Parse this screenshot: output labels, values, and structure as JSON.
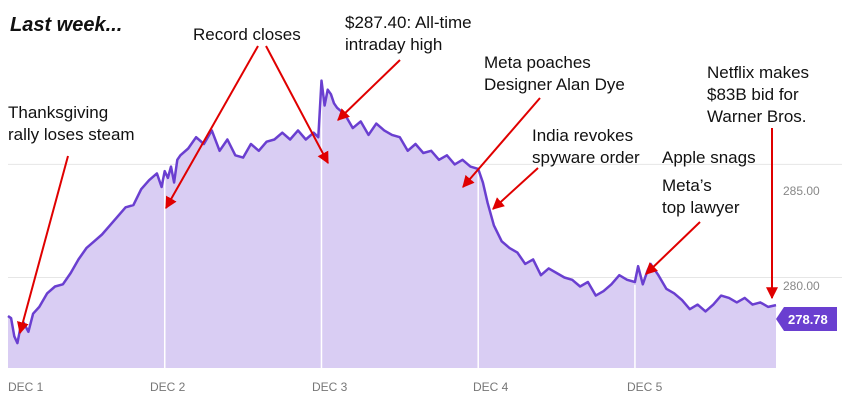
{
  "colors": {
    "line": "#6a3fd0",
    "area": "#d9cdf3",
    "arrow": "#e00000",
    "badge": "#6a3fd0",
    "divider": "#ffffff",
    "grid": "#e6e6e6"
  },
  "chart_data": {
    "type": "area",
    "title": "Last week...",
    "xlabel": "",
    "ylabel": "",
    "categories": [
      "DEC 1",
      "DEC 2",
      "DEC 3",
      "DEC 4",
      "DEC 5"
    ],
    "xlim": [
      0,
      4.9
    ],
    "ylim": [
      276.0,
      289.7
    ],
    "y_ticks": [
      {
        "value": 280,
        "label": "280.00"
      },
      {
        "value": 285,
        "label": "285.00"
      }
    ],
    "last_value": 278.78,
    "last_label": "278.78",
    "x": [
      0,
      0.02,
      0.04,
      0.06,
      0.08,
      0.1,
      0.13,
      0.16,
      0.2,
      0.25,
      0.3,
      0.35,
      0.4,
      0.45,
      0.5,
      0.55,
      0.6,
      0.65,
      0.7,
      0.75,
      0.8,
      0.85,
      0.9,
      0.95,
      0.98,
      1.0,
      1.02,
      1.04,
      1.06,
      1.08,
      1.1,
      1.15,
      1.2,
      1.25,
      1.3,
      1.35,
      1.4,
      1.45,
      1.5,
      1.55,
      1.6,
      1.65,
      1.7,
      1.75,
      1.8,
      1.85,
      1.9,
      1.95,
      1.98,
      2.0,
      2.02,
      2.04,
      2.06,
      2.08,
      2.1,
      2.15,
      2.2,
      2.25,
      2.3,
      2.35,
      2.4,
      2.45,
      2.5,
      2.55,
      2.6,
      2.65,
      2.7,
      2.75,
      2.8,
      2.85,
      2.9,
      2.95,
      3.0,
      3.03,
      3.06,
      3.1,
      3.15,
      3.2,
      3.25,
      3.3,
      3.35,
      3.4,
      3.45,
      3.5,
      3.55,
      3.6,
      3.65,
      3.7,
      3.75,
      3.8,
      3.85,
      3.9,
      3.95,
      4.0,
      4.02,
      4.05,
      4.08,
      4.1,
      4.15,
      4.2,
      4.25,
      4.3,
      4.35,
      4.4,
      4.45,
      4.5,
      4.55,
      4.6,
      4.65,
      4.7,
      4.75,
      4.8,
      4.85,
      4.9
    ],
    "values": [
      278.3,
      278.2,
      277.4,
      277.1,
      277.8,
      278.0,
      277.6,
      278.4,
      278.7,
      279.3,
      279.6,
      279.7,
      280.2,
      280.8,
      281.3,
      281.6,
      281.9,
      282.3,
      282.7,
      283.1,
      283.2,
      283.9,
      284.3,
      284.6,
      284.0,
      284.7,
      284.4,
      284.9,
      284.2,
      285.2,
      285.4,
      285.7,
      286.2,
      285.9,
      286.5,
      285.6,
      286.1,
      285.4,
      285.3,
      285.9,
      285.6,
      286.0,
      286.1,
      286.4,
      286.1,
      286.5,
      286.1,
      286.4,
      286.2,
      288.7,
      287.6,
      288.3,
      288.1,
      287.7,
      287.5,
      287.2,
      286.6,
      286.9,
      286.3,
      286.8,
      286.5,
      286.3,
      286.2,
      285.6,
      285.9,
      285.5,
      285.6,
      285.2,
      285.4,
      285.0,
      285.2,
      284.9,
      284.8,
      284.2,
      283.3,
      282.3,
      281.6,
      281.3,
      281.1,
      280.6,
      280.8,
      280.1,
      280.4,
      280.2,
      280.0,
      279.9,
      279.6,
      279.8,
      279.2,
      279.4,
      279.7,
      280.1,
      279.9,
      279.8,
      280.5,
      279.7,
      280.3,
      280.6,
      280.1,
      279.5,
      279.3,
      279.0,
      278.6,
      278.8,
      278.5,
      278.8,
      279.2,
      279.1,
      278.9,
      279.1,
      278.8,
      278.9,
      278.7,
      278.78
    ],
    "annotations": [
      {
        "lines": [
          "Thanksgiving",
          "rally loses steam"
        ]
      },
      {
        "lines": [
          "Record closes"
        ]
      },
      {
        "lines": [
          "$287.40: All-time",
          "intraday high"
        ]
      },
      {
        "lines": [
          "Meta poaches",
          "Designer Alan Dye"
        ]
      },
      {
        "lines": [
          "India revokes",
          "spyware order"
        ]
      },
      {
        "lines": [
          "Apple snags",
          "Meta’s",
          "top lawyer"
        ]
      },
      {
        "lines": [
          "Netflix makes",
          "$83B bid for",
          "Warner Bros."
        ]
      }
    ]
  }
}
